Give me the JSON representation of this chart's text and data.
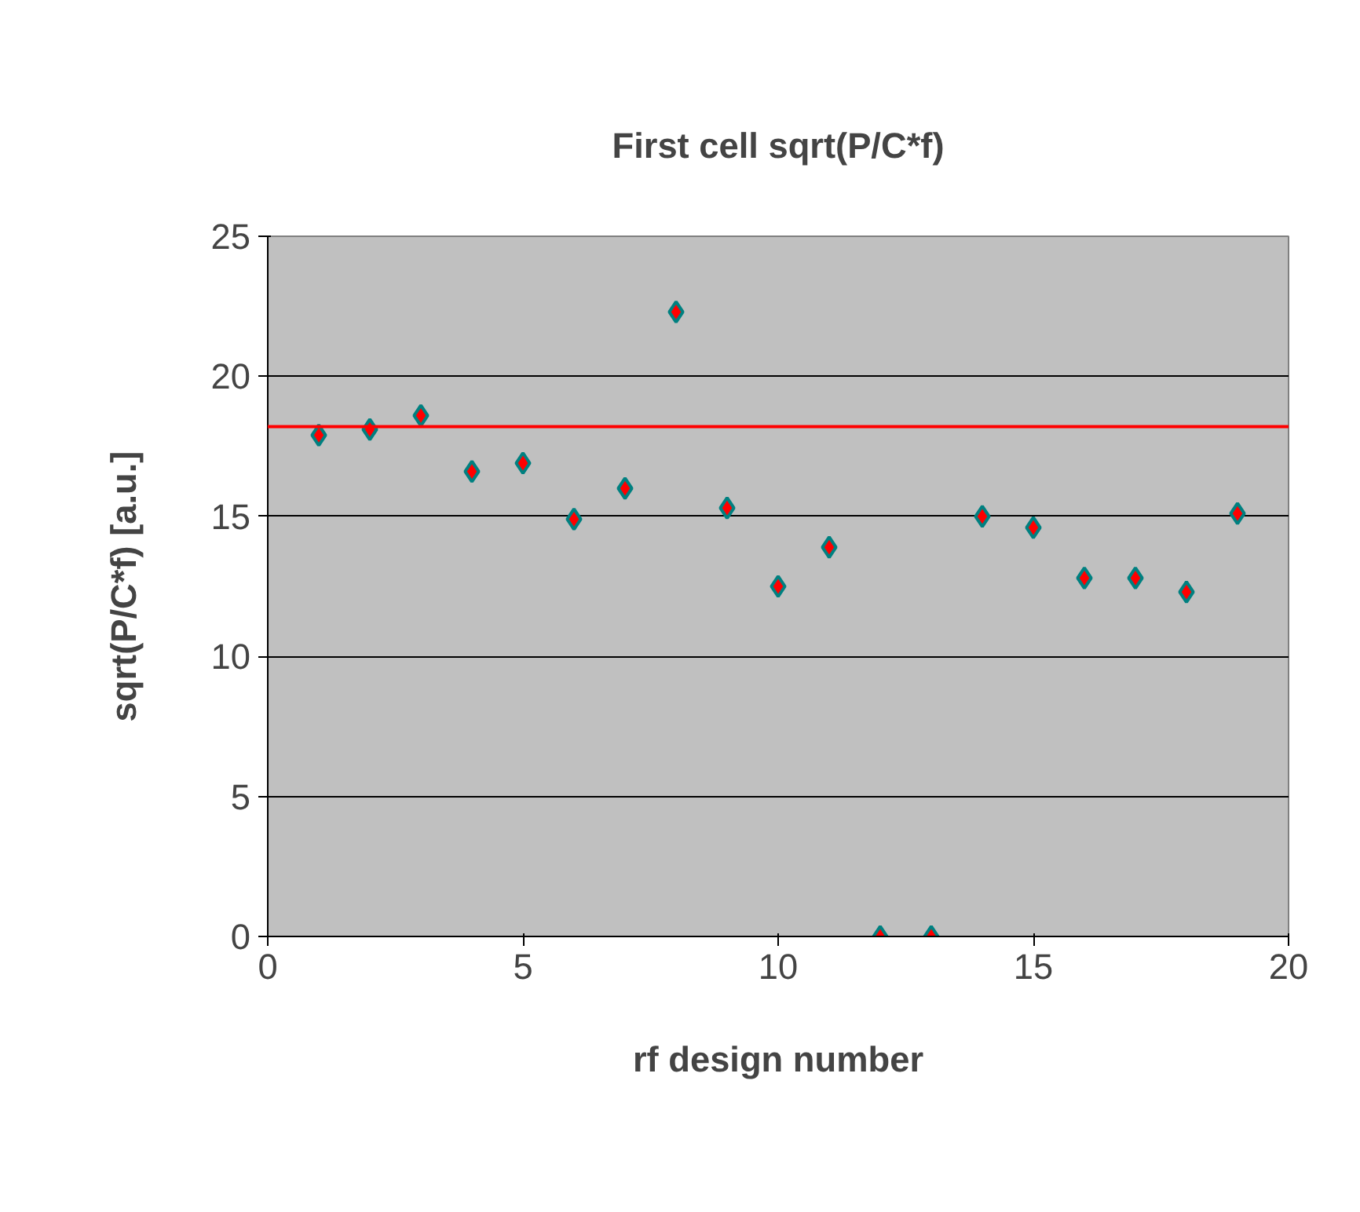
{
  "chart_data": {
    "type": "scatter",
    "title": "First cell sqrt(P/C*f)",
    "xlabel": "rf design number",
    "ylabel": "sqrt(P/C*f) [a.u.]",
    "x": [
      1,
      2,
      3,
      4,
      5,
      6,
      7,
      8,
      9,
      10,
      11,
      12,
      13,
      14,
      15,
      16,
      17,
      18,
      19
    ],
    "series": [
      {
        "color": "#ff0000",
        "values": [
          17.9,
          18.1,
          18.6,
          16.6,
          16.9,
          14.9,
          16.0,
          22.3,
          15.3,
          12.5,
          13.9,
          0,
          0,
          15.0,
          14.6,
          12.8,
          12.8,
          12.3,
          15.1
        ]
      }
    ],
    "xlim": [
      0,
      20
    ],
    "xticks": [
      0,
      5,
      10,
      15,
      20
    ],
    "ylim": [
      0,
      25
    ],
    "yticks": [
      0,
      5,
      10,
      15,
      20,
      25
    ],
    "ref_lines": [
      {
        "axis": "y",
        "value": 18.2,
        "color": "#ff0000",
        "line_style": "solid"
      }
    ],
    "grid": "y",
    "marker": "diamond"
  }
}
